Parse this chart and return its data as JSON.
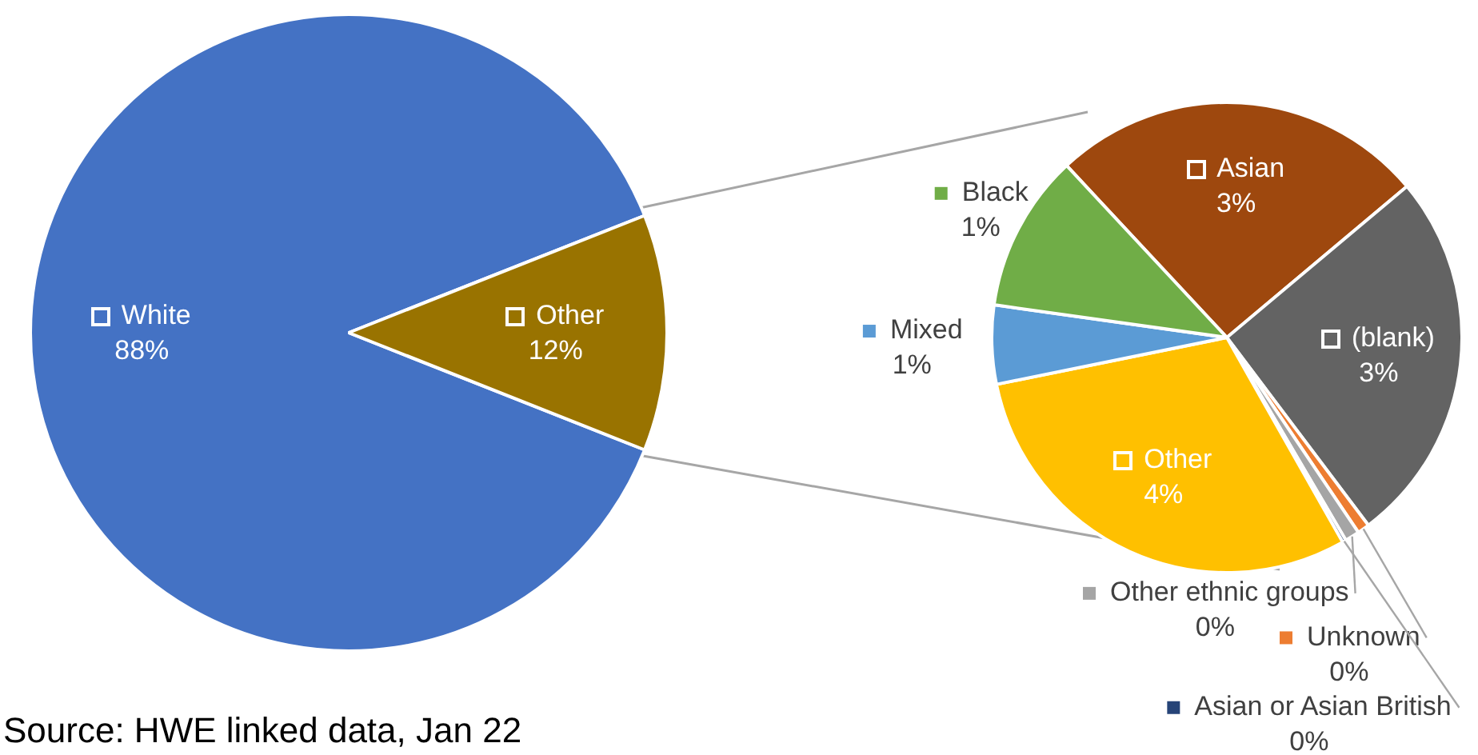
{
  "chart_data": [
    {
      "type": "pie",
      "categories": [
        "White",
        "Other"
      ],
      "values": [
        88,
        12
      ],
      "value_labels": [
        "88%",
        "12%"
      ],
      "colors": [
        "#4472c4",
        "#997300"
      ],
      "legend": "center",
      "annotations": [
        "Source: HWE linked data, Jan 22"
      ]
    },
    {
      "type": "pie",
      "categories": [
        "Asian",
        "(blank)",
        "Unknown",
        "Other ethnic groups",
        "Asian or Asian British",
        "Other",
        "Mixed",
        "Black"
      ],
      "values": [
        3.1,
        3.1,
        0.1,
        0.12,
        0.03,
        3.6,
        0.65,
        1.3
      ],
      "value_labels": [
        "3%",
        "3%",
        "0%",
        "0%",
        "0%",
        "4%",
        "1%",
        "1%"
      ],
      "colors": [
        "#9e480e",
        "#636363",
        "#ed7d31",
        "#a5a5a5",
        "#264478",
        "#ffc000",
        "#5b9bd5",
        "#70ad47"
      ],
      "legend": "bottom left"
    }
  ]
}
